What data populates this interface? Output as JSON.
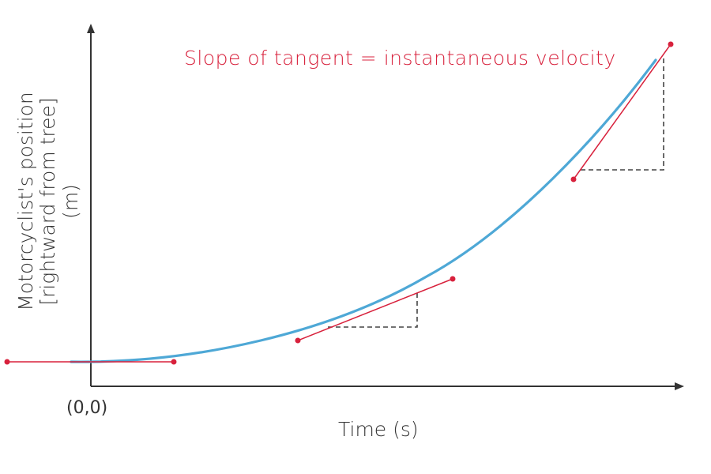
{
  "title": "Slope of tangent = instantaneous velocity",
  "x_axis_label": "Time (s)",
  "y_axis_label_lines": [
    "Motorcyclist's position",
    "[rightward from tree]",
    "(m)"
  ],
  "origin_label": "(0,0)",
  "colors": {
    "curve": "#4ea8d6",
    "tangent": "#d8213c",
    "title": "#d8213c",
    "axis": "#333333",
    "guide": "#444444",
    "text": "#333333"
  }
}
